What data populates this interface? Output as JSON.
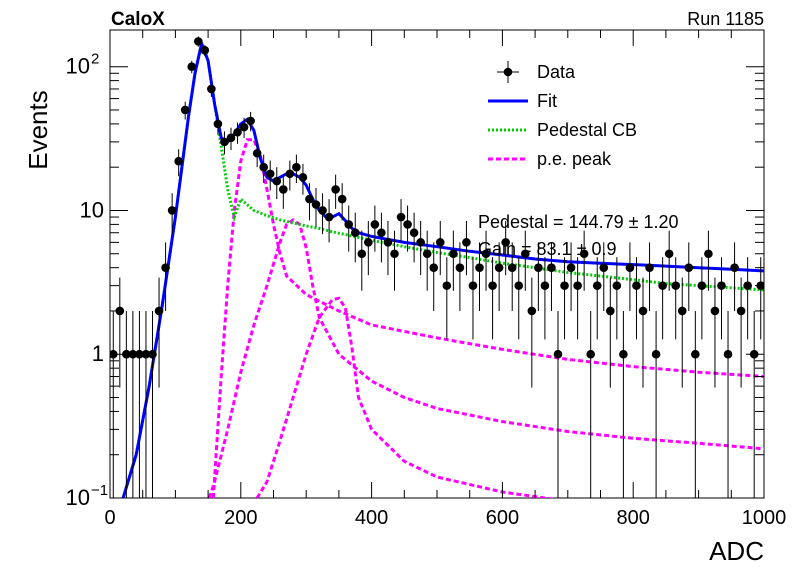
{
  "header": {
    "left_label": "CaloX",
    "right_label": "Run 1185"
  },
  "chart_data": {
    "type": "scatter",
    "xlabel": "ADC",
    "ylabel": "Events",
    "xlim": [
      0,
      1000
    ],
    "ylim": [
      0.1,
      180
    ],
    "yscale": "log",
    "x_ticks": [
      0,
      200,
      400,
      600,
      800,
      1000
    ],
    "y_ticks": [
      {
        "value": 0.1,
        "label": "10",
        "sup": "−1"
      },
      {
        "value": 1,
        "label": "1",
        "sup": ""
      },
      {
        "value": 10,
        "label": "10",
        "sup": ""
      },
      {
        "value": 100,
        "label": "10",
        "sup": "2"
      }
    ],
    "legend": {
      "placement": "top-right",
      "entries": [
        {
          "label": "Data",
          "style": "marker",
          "color": "#000000"
        },
        {
          "label": "Fit",
          "style": "solid",
          "color": "#0000FF"
        },
        {
          "label": "Pedestal CB",
          "style": "dotted",
          "color": "#00CC00"
        },
        {
          "label": "p.e. peak",
          "style": "dashed",
          "color": "#FF00FF"
        }
      ]
    },
    "annotations": [
      "Pedestal = 144.79 ± 1.20",
      "Gain = 83.1 ± 0.9"
    ],
    "fit_curve": {
      "x": [
        0,
        20,
        40,
        60,
        80,
        100,
        110,
        120,
        130,
        140,
        150,
        160,
        170,
        180,
        190,
        200,
        210,
        220,
        230,
        240,
        250,
        260,
        270,
        280,
        290,
        300,
        310,
        320,
        330,
        340,
        350,
        360,
        370,
        380,
        400,
        450,
        500,
        550,
        600,
        650,
        700,
        750,
        800,
        850,
        900,
        950,
        1000
      ],
      "y": [
        0.07,
        0.1,
        0.2,
        0.6,
        2.2,
        9,
        20,
        45,
        90,
        145,
        110,
        55,
        32,
        30,
        34,
        40,
        43,
        36,
        23,
        17,
        16,
        17,
        18,
        18,
        17,
        15,
        12,
        10,
        9,
        9,
        9.5,
        8.5,
        7.5,
        7,
        6.6,
        6,
        5.6,
        5.2,
        4.9,
        4.6,
        4.4,
        4.3,
        4.2,
        4.1,
        4.0,
        3.9,
        3.8
      ]
    },
    "pedestal_curve": {
      "x": [
        0,
        20,
        40,
        60,
        80,
        100,
        110,
        120,
        130,
        140,
        150,
        160,
        170,
        180,
        190,
        200,
        220,
        240,
        260,
        280,
        300,
        320,
        340,
        360,
        380,
        400,
        450,
        500,
        550,
        600,
        650,
        700,
        750,
        800,
        850,
        900,
        950,
        1000
      ],
      "y": [
        0.07,
        0.1,
        0.2,
        0.6,
        2.2,
        9,
        20,
        45,
        90,
        145,
        110,
        55,
        28,
        14,
        9,
        12,
        10,
        9.2,
        8.6,
        8.2,
        7.8,
        7.5,
        7.1,
        6.8,
        6.5,
        6.2,
        5.6,
        5.1,
        4.7,
        4.3,
        4.0,
        3.7,
        3.5,
        3.3,
        3.1,
        3.0,
        2.9,
        2.8
      ]
    },
    "pe_peaks": [
      {
        "x": [
          158,
          170,
          180,
          190,
          200,
          210,
          220,
          230,
          240,
          250,
          260,
          270,
          300,
          350,
          400,
          500,
          600,
          700,
          800,
          900,
          1000
        ],
        "y": [
          0.1,
          0.7,
          3,
          10,
          22,
          31,
          31,
          24,
          14,
          8,
          5,
          3.5,
          2.6,
          2.0,
          1.6,
          1.3,
          1.08,
          0.92,
          0.82,
          0.75,
          0.7
        ]
      },
      {
        "x": [
          152,
          160,
          180,
          200,
          220,
          240,
          260,
          270,
          280,
          290,
          300,
          310,
          320,
          350,
          400,
          450,
          500,
          600,
          700,
          800,
          900,
          1000
        ],
        "y": [
          0.1,
          0.13,
          0.3,
          0.75,
          1.6,
          3,
          6,
          8,
          8.6,
          8,
          5.5,
          3,
          1.8,
          1.0,
          0.65,
          0.5,
          0.42,
          0.34,
          0.29,
          0.26,
          0.24,
          0.22
        ]
      },
      {
        "x": [
          225,
          240,
          260,
          280,
          300,
          320,
          340,
          350,
          360,
          370,
          380,
          400,
          450,
          500,
          600,
          700,
          800,
          900,
          950
        ],
        "y": [
          0.1,
          0.13,
          0.25,
          0.5,
          1.0,
          1.8,
          2.4,
          2.45,
          2.1,
          1.1,
          0.5,
          0.3,
          0.18,
          0.14,
          0.11,
          0.095,
          0.085,
          0.08,
          0.078
        ]
      }
    ],
    "data_points": {
      "x": [
        5,
        15,
        25,
        35,
        45,
        55,
        65,
        75,
        85,
        95,
        105,
        115,
        125,
        135,
        145,
        155,
        165,
        175,
        185,
        195,
        205,
        215,
        225,
        235,
        245,
        255,
        265,
        275,
        285,
        295,
        305,
        315,
        325,
        335,
        345,
        355,
        365,
        375,
        385,
        395,
        405,
        415,
        425,
        435,
        445,
        455,
        465,
        475,
        485,
        495,
        505,
        515,
        525,
        535,
        545,
        555,
        565,
        575,
        585,
        595,
        605,
        615,
        625,
        635,
        645,
        655,
        665,
        675,
        685,
        695,
        705,
        715,
        725,
        735,
        745,
        755,
        765,
        775,
        785,
        795,
        805,
        815,
        825,
        835,
        845,
        855,
        865,
        875,
        885,
        895,
        905,
        915,
        925,
        935,
        945,
        955,
        965,
        975,
        985,
        995
      ],
      "y": [
        1,
        2,
        1,
        1,
        1,
        1,
        1,
        2,
        4,
        10,
        22,
        50,
        100,
        150,
        130,
        70,
        40,
        30,
        32,
        35,
        38,
        42,
        25,
        20,
        18,
        16,
        14,
        18,
        20,
        17,
        12,
        11,
        10,
        9,
        14,
        12,
        8,
        7,
        5,
        6,
        8,
        7,
        6,
        5,
        9,
        8,
        7,
        6,
        5,
        4,
        6,
        3,
        5,
        4,
        6,
        3,
        4,
        5,
        3,
        4,
        6,
        4,
        3,
        5,
        2,
        4,
        3,
        4,
        1,
        3,
        4,
        3,
        5,
        1,
        3,
        4,
        2,
        3,
        1,
        4,
        3,
        2,
        4,
        1,
        3,
        5,
        3,
        2,
        4,
        1,
        3,
        5,
        2,
        3,
        1,
        4,
        2,
        3,
        1,
        3
      ]
    }
  }
}
